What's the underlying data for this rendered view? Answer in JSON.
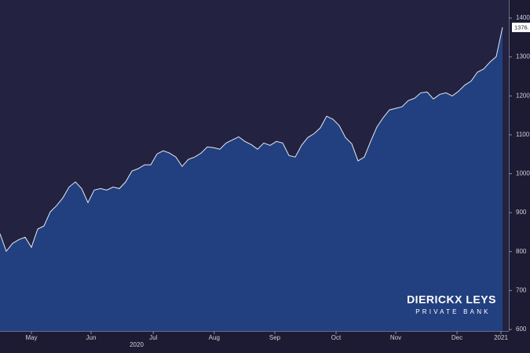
{
  "chart_data": {
    "type": "area",
    "values": [
      846,
      801,
      821,
      831,
      837,
      811,
      858,
      866,
      902,
      918,
      938,
      966,
      979,
      962,
      926,
      958,
      962,
      958,
      966,
      962,
      979,
      1007,
      1013,
      1023,
      1023,
      1051,
      1059,
      1053,
      1043,
      1019,
      1037,
      1043,
      1053,
      1069,
      1067,
      1063,
      1079,
      1087,
      1095,
      1083,
      1075,
      1063,
      1079,
      1073,
      1083,
      1079,
      1047,
      1043,
      1073,
      1093,
      1103,
      1118,
      1148,
      1140,
      1124,
      1093,
      1077,
      1033,
      1043,
      1083,
      1120,
      1144,
      1164,
      1168,
      1172,
      1188,
      1194,
      1208,
      1210,
      1192,
      1204,
      1208,
      1200,
      1212,
      1228,
      1238,
      1261,
      1269,
      1287,
      1301,
      1376
    ],
    "last_value_label": "1376.",
    "line_color": "#e8e8f0",
    "fill_color": "#22407f",
    "xlim": [
      0,
      81
    ],
    "xticks": [
      {
        "value": 5,
        "label": "May"
      },
      {
        "value": 14.5,
        "label": "Jun"
      },
      {
        "value": 24.4,
        "label": "Jul"
      },
      {
        "value": 34.1,
        "label": "Aug"
      },
      {
        "value": 43.75,
        "label": "Sep"
      },
      {
        "value": 53.5,
        "label": "Oct"
      },
      {
        "value": 63,
        "label": "Nov"
      },
      {
        "value": 72.75,
        "label": "Dec"
      },
      {
        "value": 79.75,
        "label": "2021"
      }
    ],
    "year_label": "2020",
    "ylim": [
      600,
      1400
    ],
    "yticks": [
      600,
      700,
      800,
      900,
      1000,
      1100,
      1200,
      1300,
      1400
    ],
    "watermark": {
      "title": "DIERICKX LEYS",
      "subtitle": "PRIVATE BANK"
    }
  }
}
